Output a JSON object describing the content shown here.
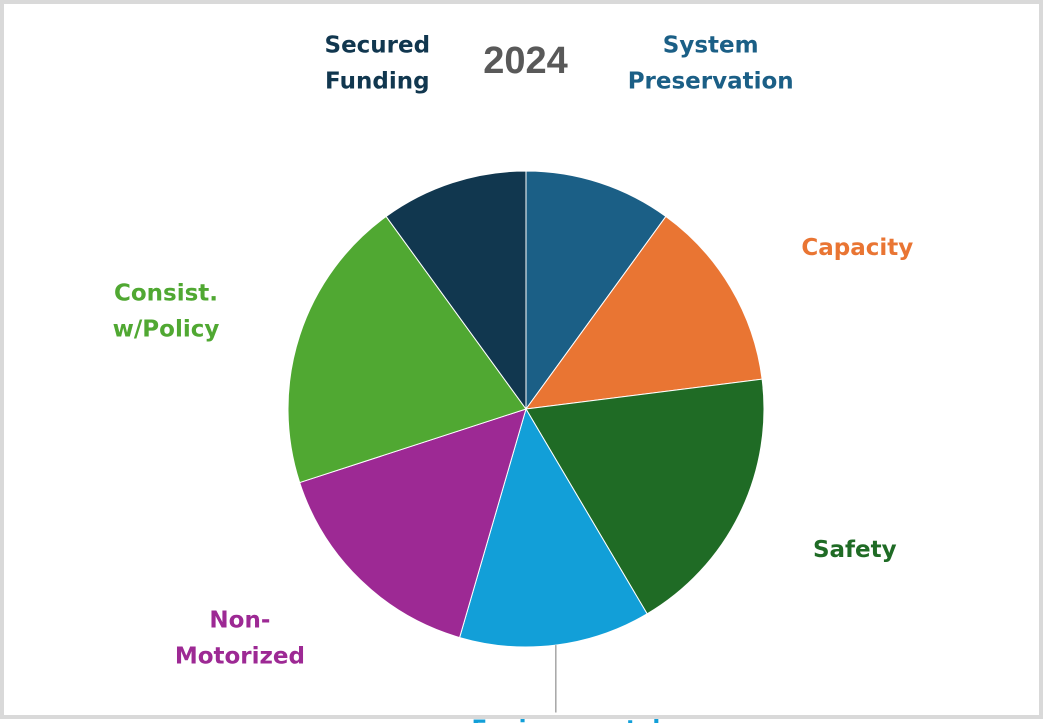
{
  "chart_data": {
    "type": "pie",
    "title": "2024",
    "start_angle_deg": 0,
    "direction": "clockwise",
    "slices": [
      {
        "label_lines": [
          "System",
          "Preservation"
        ],
        "value": 10.0,
        "color": "#1b5f86"
      },
      {
        "label_lines": [
          "Capacity"
        ],
        "value": 13.0,
        "color": "#e97533"
      },
      {
        "label_lines": [
          "Safety"
        ],
        "value": 18.5,
        "color": "#1f6b25"
      },
      {
        "label_lines": [
          "Environmental"
        ],
        "value": 13.0,
        "color": "#129fd8"
      },
      {
        "label_lines": [
          "Non-",
          "Motorized"
        ],
        "value": 15.5,
        "color": "#9d2994"
      },
      {
        "label_lines": [
          "Consist.",
          "w/Policy"
        ],
        "value": 20.0,
        "color": "#50a832"
      },
      {
        "label_lines": [
          "Secured",
          "Funding"
        ],
        "value": 10.0,
        "color": "#11374f"
      }
    ]
  }
}
